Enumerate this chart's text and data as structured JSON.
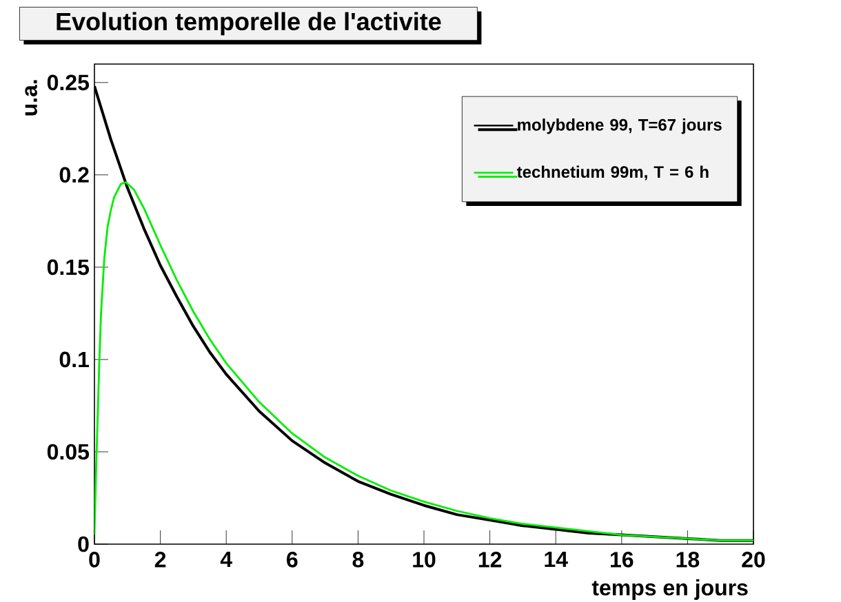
{
  "chart_data": {
    "type": "line",
    "title": "Evolution temporelle de l'activite",
    "xlabel": "temps en jours",
    "ylabel": "u.a.",
    "xlim": [
      0,
      20
    ],
    "ylim": [
      0,
      0.26
    ],
    "xticks": [
      0,
      2,
      4,
      6,
      8,
      10,
      12,
      14,
      16,
      18,
      20
    ],
    "yticks": [
      0,
      0.05,
      0.1,
      0.15,
      0.2,
      0.25
    ],
    "grid": false,
    "legend": "top right",
    "marker": "none",
    "line_style": "solid",
    "series": [
      {
        "name": "molybdene 99, T=67 jours",
        "color": "#000000",
        "x": [
          0,
          0.5,
          1,
          1.5,
          2,
          2.5,
          3,
          3.5,
          4,
          5,
          6,
          7,
          8,
          9,
          10,
          11,
          12,
          13,
          14,
          15,
          16,
          17,
          18,
          19,
          20
        ],
        "values": [
          0.248,
          0.219,
          0.193,
          0.171,
          0.151,
          0.134,
          0.118,
          0.104,
          0.092,
          0.072,
          0.056,
          0.044,
          0.034,
          0.027,
          0.021,
          0.016,
          0.013,
          0.01,
          0.008,
          0.006,
          0.005,
          0.004,
          0.003,
          0.002,
          0.002
        ]
      },
      {
        "name": "technetium 99m, T = 6 h",
        "color": "#00ee00",
        "x": [
          0,
          0.05,
          0.1,
          0.15,
          0.2,
          0.3,
          0.4,
          0.5,
          0.6,
          0.8,
          0.95,
          1.2,
          1.5,
          2,
          2.5,
          3,
          3.5,
          4,
          5,
          6,
          7,
          8,
          9,
          10,
          11,
          12,
          13,
          14,
          15,
          16,
          17,
          18,
          19,
          20
        ],
        "values": [
          0.005,
          0.04,
          0.07,
          0.1,
          0.125,
          0.155,
          0.172,
          0.181,
          0.188,
          0.195,
          0.196,
          0.192,
          0.182,
          0.162,
          0.143,
          0.126,
          0.111,
          0.098,
          0.077,
          0.06,
          0.047,
          0.037,
          0.029,
          0.023,
          0.018,
          0.014,
          0.011,
          0.009,
          0.007,
          0.005,
          0.004,
          0.003,
          0.002,
          0.002
        ]
      }
    ]
  }
}
